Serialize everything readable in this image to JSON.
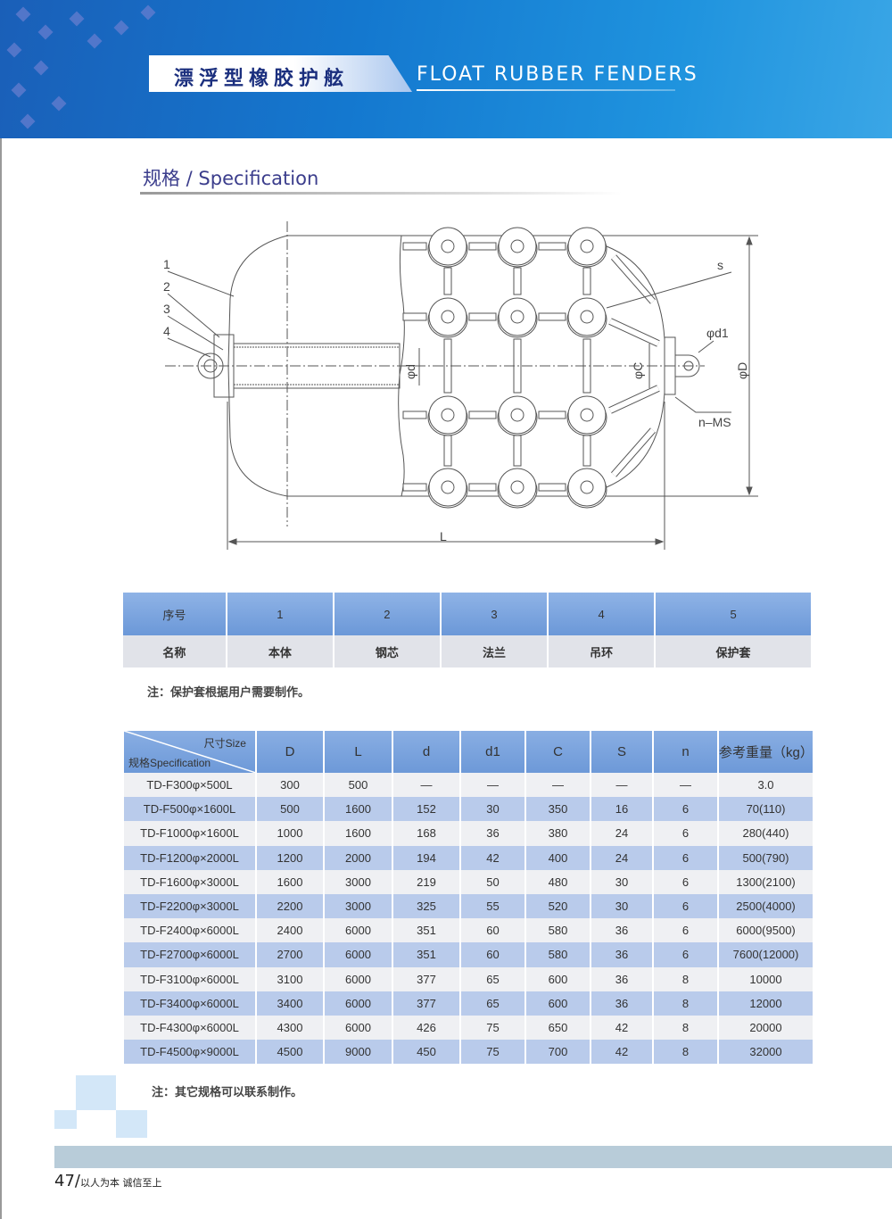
{
  "header": {
    "title_cn": "漂浮型橡胶护舷",
    "title_en": "FLOAT RUBBER FENDERS"
  },
  "section": {
    "heading": "规格 / Specification"
  },
  "drawing": {
    "callouts": [
      "1",
      "2",
      "3",
      "4"
    ],
    "labels": {
      "s": "s",
      "d1": "φd1",
      "nms": "n–MS",
      "d": "φd",
      "c": "φC",
      "D": "φD",
      "L": "L"
    }
  },
  "parts_table": {
    "row_header": "序号",
    "numbers": [
      "1",
      "2",
      "3",
      "4",
      "5"
    ],
    "name_header": "名称",
    "names": [
      "本体",
      "钢芯",
      "法兰",
      "吊环",
      "保护套"
    ]
  },
  "note1": "注：保护套根据用户需要制作。",
  "spec_table": {
    "corner_top": "尺寸Size",
    "corner_bottom": "规格Specification",
    "columns": [
      "D",
      "L",
      "d",
      "d1",
      "C",
      "S",
      "n",
      "参考重量（kg）"
    ],
    "rows": [
      [
        "TD-F300φ×500L",
        "300",
        "500",
        "—",
        "—",
        "—",
        "—",
        "—",
        "3.0"
      ],
      [
        "TD-F500φ×1600L",
        "500",
        "1600",
        "152",
        "30",
        "350",
        "16",
        "6",
        "70(110)"
      ],
      [
        "TD-F1000φ×1600L",
        "1000",
        "1600",
        "168",
        "36",
        "380",
        "24",
        "6",
        "280(440)"
      ],
      [
        "TD-F1200φ×2000L",
        "1200",
        "2000",
        "194",
        "42",
        "400",
        "24",
        "6",
        "500(790)"
      ],
      [
        "TD-F1600φ×3000L",
        "1600",
        "3000",
        "219",
        "50",
        "480",
        "30",
        "6",
        "1300(2100)"
      ],
      [
        "TD-F2200φ×3000L",
        "2200",
        "3000",
        "325",
        "55",
        "520",
        "30",
        "6",
        "2500(4000)"
      ],
      [
        "TD-F2400φ×6000L",
        "2400",
        "6000",
        "351",
        "60",
        "580",
        "36",
        "6",
        "6000(9500)"
      ],
      [
        "TD-F2700φ×6000L",
        "2700",
        "6000",
        "351",
        "60",
        "580",
        "36",
        "6",
        "7600(12000)"
      ],
      [
        "TD-F3100φ×6000L",
        "3100",
        "6000",
        "377",
        "65",
        "600",
        "36",
        "8",
        "10000"
      ],
      [
        "TD-F3400φ×6000L",
        "3400",
        "6000",
        "377",
        "65",
        "600",
        "36",
        "8",
        "12000"
      ],
      [
        "TD-F4300φ×6000L",
        "4300",
        "6000",
        "426",
        "75",
        "650",
        "42",
        "8",
        "20000"
      ],
      [
        "TD-F4500φ×9000L",
        "4500",
        "9000",
        "450",
        "75",
        "700",
        "42",
        "8",
        "32000"
      ]
    ]
  },
  "note2": "注：其它规格可以联系制作。",
  "footer": {
    "page": "47/",
    "slogan": "以人为本 诚信至上"
  }
}
